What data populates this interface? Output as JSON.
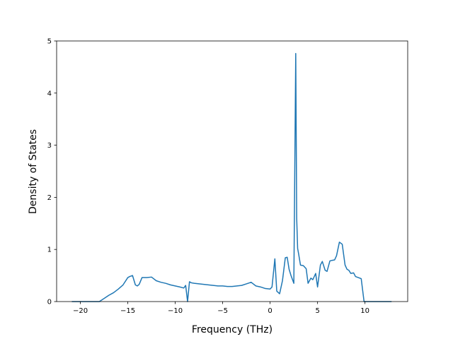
{
  "chart_data": {
    "type": "line",
    "title": "",
    "xlabel": "Frequency (THz)",
    "ylabel": "Density of States",
    "xlim": [
      -22.5,
      14.5
    ],
    "ylim": [
      0,
      5
    ],
    "xticks": [
      -20,
      -15,
      -10,
      -5,
      0,
      5,
      10
    ],
    "yticks": [
      0,
      1,
      2,
      3,
      4,
      5
    ],
    "grid": false,
    "legend": "none",
    "series": [
      {
        "color": "#1f77b4",
        "x": [
          -20.9,
          -18.0,
          -17.5,
          -17.0,
          -16.5,
          -16.0,
          -15.5,
          -15.0,
          -14.8,
          -14.5,
          -14.2,
          -14.0,
          -13.8,
          -13.5,
          -13.0,
          -12.5,
          -12.0,
          -11.5,
          -11.0,
          -10.5,
          -10.0,
          -9.5,
          -9.1,
          -8.9,
          -8.7,
          -8.5,
          -8.3,
          -8.0,
          -7.5,
          -7.0,
          -6.5,
          -6.0,
          -5.5,
          -5.0,
          -4.5,
          -4.0,
          -3.5,
          -3.0,
          -2.5,
          -2.0,
          -1.5,
          -1.0,
          -0.5,
          0.0,
          0.2,
          0.5,
          0.7,
          1.0,
          1.3,
          1.6,
          1.8,
          2.0,
          2.2,
          2.5,
          2.7,
          2.8,
          2.9,
          3.0,
          3.2,
          3.5,
          3.8,
          4.0,
          4.3,
          4.5,
          4.8,
          5.0,
          5.3,
          5.5,
          5.8,
          6.0,
          6.3,
          6.5,
          6.8,
          7.0,
          7.3,
          7.6,
          7.9,
          8.1,
          8.3,
          8.5,
          8.8,
          9.0,
          9.3,
          9.6,
          9.9,
          10.0,
          12.8
        ],
        "y": [
          0.0,
          0.0,
          0.06,
          0.12,
          0.17,
          0.24,
          0.32,
          0.46,
          0.48,
          0.5,
          0.32,
          0.3,
          0.33,
          0.46,
          0.46,
          0.47,
          0.4,
          0.37,
          0.35,
          0.32,
          0.3,
          0.28,
          0.26,
          0.31,
          0.0,
          0.38,
          0.36,
          0.35,
          0.34,
          0.33,
          0.32,
          0.31,
          0.3,
          0.3,
          0.29,
          0.29,
          0.3,
          0.31,
          0.34,
          0.37,
          0.3,
          0.28,
          0.25,
          0.24,
          0.28,
          0.82,
          0.2,
          0.15,
          0.4,
          0.84,
          0.85,
          0.62,
          0.5,
          0.35,
          4.76,
          1.6,
          1.02,
          0.92,
          0.7,
          0.69,
          0.63,
          0.35,
          0.45,
          0.42,
          0.54,
          0.28,
          0.7,
          0.77,
          0.6,
          0.58,
          0.78,
          0.79,
          0.8,
          0.88,
          1.14,
          1.1,
          0.7,
          0.62,
          0.6,
          0.54,
          0.55,
          0.48,
          0.46,
          0.44,
          0.0,
          0.0,
          0.0
        ]
      }
    ]
  }
}
